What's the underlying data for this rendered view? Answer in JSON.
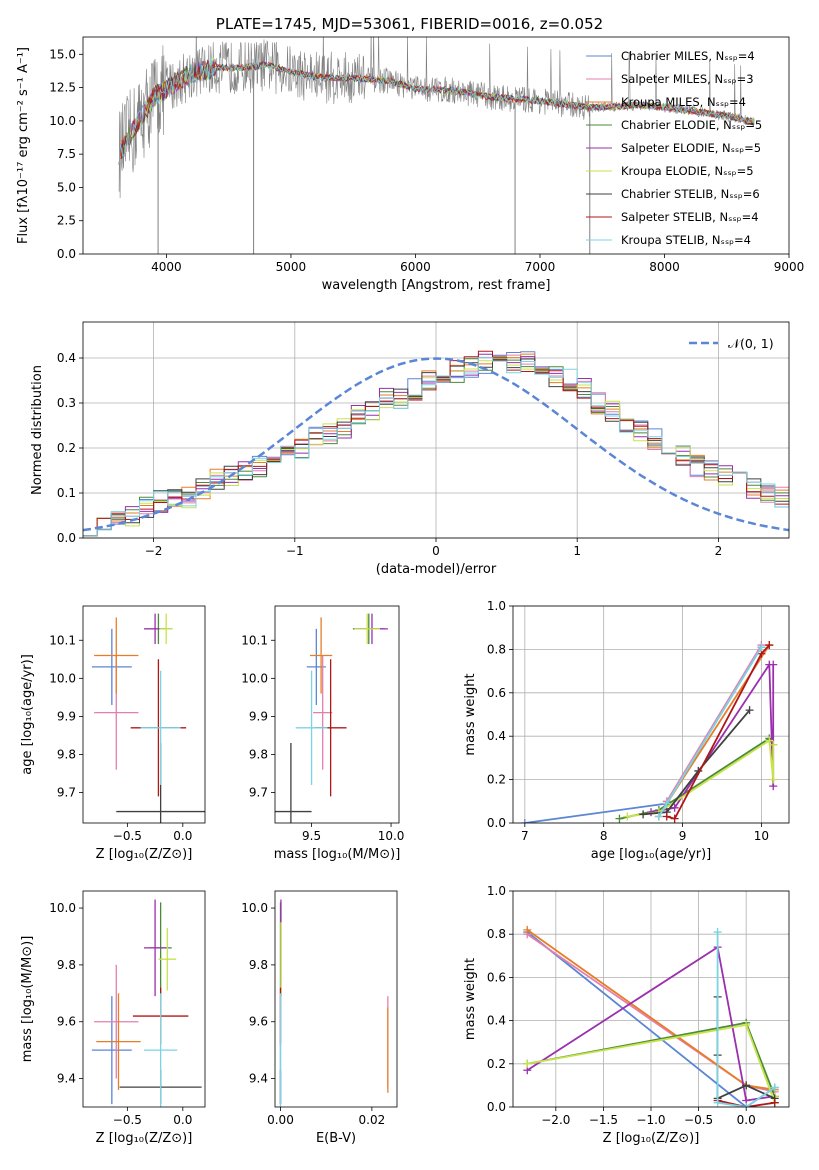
{
  "figure_title": "PLATE=1745, MJD=53061, FIBERID=0016, z=0.052",
  "series_colors": {
    "chabrier_miles": "#5b86d6",
    "salpeter_miles": "#e37fae",
    "kroupa_miles": "#e87d28",
    "chabrier_elodie": "#4a8a3a",
    "salpeter_elodie": "#9b2fae",
    "kroupa_elodie": "#c7e34a",
    "chabrier_stelib": "#404040",
    "salpeter_stelib": "#b01818",
    "kroupa_stelib": "#7ad4e4",
    "data": "#808080"
  },
  "chart_data": [
    {
      "type": "line",
      "title": "PLATE=1745, MJD=53061, FIBERID=0016, z=0.052",
      "xlabel": "wavelength [Angstrom, rest frame]",
      "ylabel": "Flux [fλ10⁻¹⁷ erg cm⁻² s⁻¹ A⁻¹]",
      "xlim": [
        3330,
        9000
      ],
      "ylim": [
        0,
        16.3
      ],
      "xticks": [
        4000,
        5000,
        6000,
        7000,
        8000,
        9000
      ],
      "yticks": [
        0.0,
        2.5,
        5.0,
        7.5,
        10.0,
        12.5,
        15.0
      ],
      "legend_position": "right",
      "legend": [
        "Chabrier MILES, N_SSP=4",
        "Salpeter MILES, N_SSP=3",
        "Kroupa MILES, N_SSP=4",
        "Chabrier ELODIE, N_SSP=5",
        "Salpeter ELODIE, N_SSP=5",
        "Kroupa ELODIE, N_SSP=5",
        "Chabrier STELIB, N_SSP=6",
        "Salpeter STELIB, N_SSP=4",
        "Kroupa STELIB, N_SSP=4"
      ],
      "continuum": {
        "x": [
          3620,
          3800,
          3900,
          4000,
          4200,
          4400,
          4600,
          4800,
          5000,
          5200,
          5500,
          5800,
          6000,
          6300,
          6600,
          7000,
          7400,
          7800,
          8200,
          8600,
          8720
        ],
        "y": [
          7.5,
          10.3,
          11.8,
          12.4,
          13.6,
          14.0,
          14.0,
          14.2,
          13.7,
          13.3,
          13.2,
          13.0,
          12.4,
          12.3,
          11.8,
          11.5,
          11.0,
          11.2,
          10.8,
          10.2,
          9.9
        ]
      }
    },
    {
      "type": "bar",
      "xlabel": "(data-model)/error",
      "ylabel": "Normed distribution",
      "xlim": [
        -2.5,
        2.5
      ],
      "ylim": [
        0,
        0.48
      ],
      "xticks": [
        -2,
        -1,
        0,
        1,
        2
      ],
      "yticks": [
        0.0,
        0.1,
        0.2,
        0.3,
        0.4
      ],
      "grid": true,
      "legend_position": "top-right",
      "legend": [
        "𝒩(0, 1)"
      ],
      "bin_edges_start": -2.5,
      "bin_width": 0.1,
      "histogram": [
        0.03,
        0.03,
        0.04,
        0.05,
        0.07,
        0.08,
        0.09,
        0.09,
        0.11,
        0.13,
        0.14,
        0.15,
        0.16,
        0.18,
        0.19,
        0.2,
        0.23,
        0.23,
        0.24,
        0.27,
        0.28,
        0.31,
        0.31,
        0.33,
        0.35,
        0.36,
        0.37,
        0.38,
        0.39,
        0.39,
        0.39,
        0.39,
        0.38,
        0.36,
        0.35,
        0.33,
        0.3,
        0.28,
        0.26,
        0.24,
        0.22,
        0.2,
        0.18,
        0.16,
        0.15,
        0.14,
        0.13,
        0.11,
        0.1,
        0.09
      ],
      "gaussian": {
        "mean": 0,
        "sigma": 1
      }
    },
    {
      "type": "scatter",
      "xlabel": "Z [log₁₀(Z/Z⊙)]",
      "ylabel": "age  [log₁₀(age/yr)]",
      "xlim": [
        -0.9,
        0.2
      ],
      "ylim": [
        9.62,
        10.19
      ],
      "xticks": [
        -0.5,
        0.0
      ],
      "yticks": [
        9.7,
        9.8,
        9.9,
        10.0,
        10.1
      ],
      "points": [
        {
          "series": "chabrier_miles",
          "x": -0.64,
          "y": 10.03,
          "xerr": 0.18,
          "yerr": 0.1
        },
        {
          "series": "salpeter_miles",
          "x": -0.6,
          "y": 9.91,
          "xerr": 0.2,
          "yerr": 0.15
        },
        {
          "series": "kroupa_miles",
          "x": -0.6,
          "y": 10.06,
          "xerr": 0.2,
          "yerr": 0.1
        },
        {
          "series": "chabrier_elodie",
          "x": -0.22,
          "y": 10.13,
          "xerr": 0.12,
          "yerr": 0.04
        },
        {
          "series": "salpeter_elodie",
          "x": -0.25,
          "y": 10.13,
          "xerr": 0.1,
          "yerr": 0.04
        },
        {
          "series": "kroupa_elodie",
          "x": -0.15,
          "y": 10.13,
          "xerr": 0.06,
          "yerr": 0.04
        },
        {
          "series": "chabrier_stelib",
          "x": -0.2,
          "y": 9.65,
          "xerr": 0.4,
          "yerr": 0.18
        },
        {
          "series": "salpeter_stelib",
          "x": -0.22,
          "y": 9.87,
          "xerr": 0.25,
          "yerr": 0.18
        },
        {
          "series": "kroupa_stelib",
          "x": -0.2,
          "y": 9.87,
          "xerr": 0.18,
          "yerr": 0.15
        }
      ]
    },
    {
      "type": "scatter",
      "xlabel": "mass [log₁₀(M/M⊙)]",
      "ylabel": "",
      "xlim": [
        9.27,
        10.05
      ],
      "ylim": [
        9.62,
        10.19
      ],
      "xticks": [
        9.5,
        10.0
      ],
      "yticks": [
        9.7,
        9.8,
        9.9,
        10.0,
        10.1
      ],
      "points": [
        {
          "series": "chabrier_miles",
          "x": 9.53,
          "y": 10.03,
          "xerr": 0.06,
          "yerr": 0.1
        },
        {
          "series": "salpeter_miles",
          "x": 9.57,
          "y": 9.91,
          "xerr": 0.06,
          "yerr": 0.15
        },
        {
          "series": "kroupa_miles",
          "x": 9.56,
          "y": 10.06,
          "xerr": 0.07,
          "yerr": 0.1
        },
        {
          "series": "chabrier_elodie",
          "x": 9.86,
          "y": 10.13,
          "xerr": 0.1,
          "yerr": 0.04
        },
        {
          "series": "salpeter_elodie",
          "x": 9.88,
          "y": 10.13,
          "xerr": 0.1,
          "yerr": 0.04
        },
        {
          "series": "kroupa_elodie",
          "x": 9.85,
          "y": 10.13,
          "xerr": 0.08,
          "yerr": 0.04
        },
        {
          "series": "chabrier_stelib",
          "x": 9.37,
          "y": 9.65,
          "xerr": 0.13,
          "yerr": 0.18
        },
        {
          "series": "salpeter_stelib",
          "x": 9.62,
          "y": 9.87,
          "xerr": 0.1,
          "yerr": 0.18
        },
        {
          "series": "kroupa_stelib",
          "x": 9.5,
          "y": 9.87,
          "xerr": 0.1,
          "yerr": 0.15
        }
      ]
    },
    {
      "type": "line",
      "xlabel": "age  [log₁₀(age/yr)]",
      "ylabel": "mass weight",
      "xlim": [
        6.85,
        10.35
      ],
      "ylim": [
        0,
        1.0
      ],
      "xticks": [
        7,
        8,
        9,
        10
      ],
      "yticks": [
        0.0,
        0.2,
        0.4,
        0.6,
        0.8,
        1.0
      ],
      "grid": true,
      "series": [
        {
          "series": "chabrier_miles",
          "x": [
            7.0,
            8.8,
            10.0
          ],
          "y": [
            0.0,
            0.09,
            0.81
          ]
        },
        {
          "series": "salpeter_miles",
          "x": [
            8.7,
            8.8,
            10.0
          ],
          "y": [
            0.03,
            0.1,
            0.82
          ]
        },
        {
          "series": "kroupa_miles",
          "x": [
            8.7,
            8.8,
            10.1
          ],
          "y": [
            0.03,
            0.09,
            0.82
          ]
        },
        {
          "series": "chabrier_elodie",
          "x": [
            8.2,
            8.7,
            10.1,
            10.15
          ],
          "y": [
            0.02,
            0.06,
            0.39,
            0.36
          ]
        },
        {
          "series": "salpeter_elodie",
          "x": [
            8.6,
            8.9,
            10.1,
            10.15,
            10.15
          ],
          "y": [
            0.05,
            0.07,
            0.73,
            0.17,
            0.73
          ]
        },
        {
          "series": "kroupa_elodie",
          "x": [
            8.3,
            8.7,
            10.1,
            10.15,
            10.15
          ],
          "y": [
            0.03,
            0.05,
            0.38,
            0.2,
            0.36
          ]
        },
        {
          "series": "chabrier_stelib",
          "x": [
            8.5,
            8.8,
            9.2,
            9.85
          ],
          "y": [
            0.04,
            0.05,
            0.24,
            0.52
          ]
        },
        {
          "series": "salpeter_stelib",
          "x": [
            8.8,
            8.9,
            10.0,
            10.1
          ],
          "y": [
            0.03,
            0.02,
            0.78,
            0.82
          ]
        },
        {
          "series": "kroupa_stelib",
          "x": [
            8.7,
            8.8,
            10.0
          ],
          "y": [
            0.03,
            0.09,
            0.81
          ]
        }
      ]
    },
    {
      "type": "scatter",
      "xlabel": "Z [log₁₀(Z/Z⊙)]",
      "ylabel": "mass [log₁₀(M/M⊙)]",
      "xlim": [
        -0.9,
        0.2
      ],
      "ylim": [
        9.3,
        10.06
      ],
      "xticks": [
        -0.5,
        0.0
      ],
      "yticks": [
        9.4,
        9.6,
        9.8,
        10.0
      ],
      "points": [
        {
          "series": "chabrier_miles",
          "x": -0.64,
          "y": 9.5,
          "xerr": 0.18,
          "yerr": 0.19
        },
        {
          "series": "salpeter_miles",
          "x": -0.6,
          "y": 9.6,
          "xerr": 0.2,
          "yerr": 0.2
        },
        {
          "series": "kroupa_miles",
          "x": -0.58,
          "y": 9.53,
          "xerr": 0.2,
          "yerr": 0.17
        },
        {
          "series": "chabrier_elodie",
          "x": -0.2,
          "y": 9.86,
          "xerr": 0.1,
          "yerr": 0.16
        },
        {
          "series": "salpeter_elodie",
          "x": -0.25,
          "y": 9.86,
          "xerr": 0.1,
          "yerr": 0.17
        },
        {
          "series": "kroupa_elodie",
          "x": -0.14,
          "y": 9.82,
          "xerr": 0.08,
          "yerr": 0.11
        },
        {
          "series": "chabrier_stelib",
          "x": -0.2,
          "y": 9.37,
          "xerr": 0.37,
          "yerr": 0.06
        },
        {
          "series": "salpeter_stelib",
          "x": -0.2,
          "y": 9.62,
          "xerr": 0.25,
          "yerr": 0.1
        },
        {
          "series": "kroupa_stelib",
          "x": -0.2,
          "y": 9.5,
          "xerr": 0.15,
          "yerr": 0.2
        }
      ]
    },
    {
      "type": "scatter",
      "xlabel": "E(B-V)",
      "ylabel": "",
      "xlim": [
        -0.0012,
        0.0255
      ],
      "ylim": [
        9.3,
        10.06
      ],
      "xticks": [
        0.0,
        0.02
      ],
      "yticks": [
        9.4,
        9.6,
        9.8,
        10.0
      ],
      "points": [
        {
          "series": "chabrier_miles",
          "x": 0.0,
          "y": 9.5,
          "yerr": 0.19
        },
        {
          "series": "salpeter_miles",
          "x": 0.0235,
          "y": 9.53,
          "yerr": 0.16
        },
        {
          "series": "kroupa_miles",
          "x": 0.0235,
          "y": 9.5,
          "yerr": 0.15
        },
        {
          "series": "chabrier_elodie",
          "x": 0.0,
          "y": 9.86,
          "yerr": 0.16
        },
        {
          "series": "salpeter_elodie",
          "x": 0.0001,
          "y": 9.86,
          "yerr": 0.17
        },
        {
          "series": "kroupa_elodie",
          "x": 0.0001,
          "y": 9.82,
          "yerr": 0.13
        },
        {
          "series": "chabrier_stelib",
          "x": 0.0,
          "y": 9.37,
          "yerr": 0.06
        },
        {
          "series": "salpeter_stelib",
          "x": 0.0,
          "y": 9.62,
          "yerr": 0.1
        },
        {
          "series": "kroupa_stelib",
          "x": 0.0,
          "y": 9.5,
          "yerr": 0.2
        }
      ]
    },
    {
      "type": "line",
      "xlabel": "Z [log₁₀(Z/Z⊙)]",
      "ylabel": "mass weight",
      "xlim": [
        -2.45,
        0.45
      ],
      "ylim": [
        0,
        1.0
      ],
      "xticks": [
        -2.0,
        -1.5,
        -1.0,
        -0.5,
        0.0
      ],
      "yticks": [
        0.0,
        0.2,
        0.4,
        0.6,
        0.8,
        1.0
      ],
      "grid": true,
      "series": [
        {
          "series": "chabrier_miles",
          "x": [
            -2.3,
            0.0,
            0.3
          ],
          "y": [
            0.81,
            0.0,
            0.09
          ]
        },
        {
          "series": "salpeter_miles",
          "x": [
            -2.3,
            0.0,
            0.3
          ],
          "y": [
            0.8,
            0.1,
            0.07
          ]
        },
        {
          "series": "kroupa_miles",
          "x": [
            -2.3,
            0.0,
            0.3
          ],
          "y": [
            0.82,
            0.1,
            0.08
          ]
        },
        {
          "series": "chabrier_elodie",
          "x": [
            -2.3,
            0.0,
            0.3,
            0.3
          ],
          "y": [
            0.2,
            0.39,
            0.05,
            0.02
          ]
        },
        {
          "series": "salpeter_elodie",
          "x": [
            -2.3,
            -0.3,
            0.0,
            0.3
          ],
          "y": [
            0.17,
            0.74,
            0.03,
            0.05
          ]
        },
        {
          "series": "kroupa_elodie",
          "x": [
            -2.3,
            0.0,
            0.3,
            0.3
          ],
          "y": [
            0.2,
            0.38,
            0.02,
            0.05
          ]
        },
        {
          "series": "chabrier_stelib",
          "x": [
            -0.3,
            -0.3,
            -0.3,
            0.0,
            0.3
          ],
          "y": [
            0.51,
            0.24,
            0.04,
            0.1,
            0.04
          ]
        },
        {
          "series": "salpeter_stelib",
          "x": [
            -0.3,
            0.0,
            0.3
          ],
          "y": [
            0.03,
            0.0,
            0.02
          ]
        },
        {
          "series": "kroupa_stelib",
          "x": [
            -0.3,
            -0.3,
            0.0,
            0.3
          ],
          "y": [
            0.81,
            0.02,
            0.0,
            0.09
          ]
        }
      ]
    }
  ]
}
